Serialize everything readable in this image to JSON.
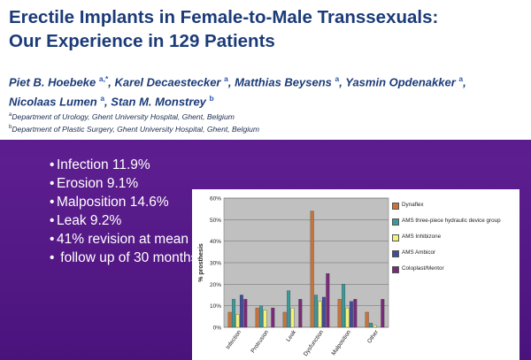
{
  "paper": {
    "title_line1": "Erectile Implants in Female-to-Male Transsexuals:",
    "title_line2": "Our Experience in 129 Patients",
    "authors": [
      {
        "name": "Piet B. Hoebeke",
        "sup": "a,*",
        "sep": ", "
      },
      {
        "name": "Karel Decaestecker",
        "sup": "a",
        "sep": ", "
      },
      {
        "name": "Matthias Beysens",
        "sup": "a",
        "sep": ", "
      },
      {
        "name": "Yasmin Opdenakker",
        "sup": "a",
        "sep": ","
      },
      {
        "name": "Nicolaas Lumen",
        "sup": "a",
        "sep": ", "
      },
      {
        "name": "Stan M. Monstrey",
        "sup": "b",
        "sep": ""
      }
    ],
    "affiliations": [
      {
        "sup": "a",
        "text": "Department of Urology, Ghent University Hospital, Ghent, Belgium"
      },
      {
        "sup": "b",
        "text": "Department of Plastic Surgery, Ghent University Hospital, Ghent, Belgium"
      }
    ]
  },
  "bullets": [
    "Infection 11.9%",
    "Erosion 9.1%",
    "Malposition 14.6%",
    "Leak 9.2%",
    "41% revision at mean",
    " follow up of 30 months"
  ],
  "colors": {
    "background": "#5a1a8a",
    "title": "#1b3b78",
    "plot_area": "#c0c0c0"
  },
  "chart_data": {
    "type": "bar",
    "ylabel": "% prosthesis",
    "ylim": [
      0,
      60
    ],
    "yticks": [
      "0%",
      "10%",
      "20%",
      "30%",
      "40%",
      "50%",
      "60%"
    ],
    "categories": [
      "Infection",
      "Protrusion",
      "Leak",
      "Dysfunction",
      "Malposition",
      "Other"
    ],
    "series": [
      {
        "name": "Dynaflex",
        "color": "#c8733a",
        "values": [
          7,
          9,
          7,
          54,
          13,
          7
        ]
      },
      {
        "name": "AMS three-piece hydraulic device group",
        "color": "#3a9a9a",
        "values": [
          13,
          10,
          17,
          15,
          20,
          2
        ]
      },
      {
        "name": "AMS Inhibizone",
        "color": "#f2f27a",
        "values": [
          6,
          8,
          9,
          12,
          9,
          1
        ]
      },
      {
        "name": "AMS Ambicor",
        "color": "#3e4e9c",
        "values": [
          15,
          0,
          0,
          14,
          12,
          0
        ]
      },
      {
        "name": "Coloplast/Mentor",
        "color": "#7a2a7a",
        "values": [
          13,
          9,
          13,
          25,
          13,
          13
        ]
      }
    ],
    "grid": true,
    "legend_position": "right"
  }
}
